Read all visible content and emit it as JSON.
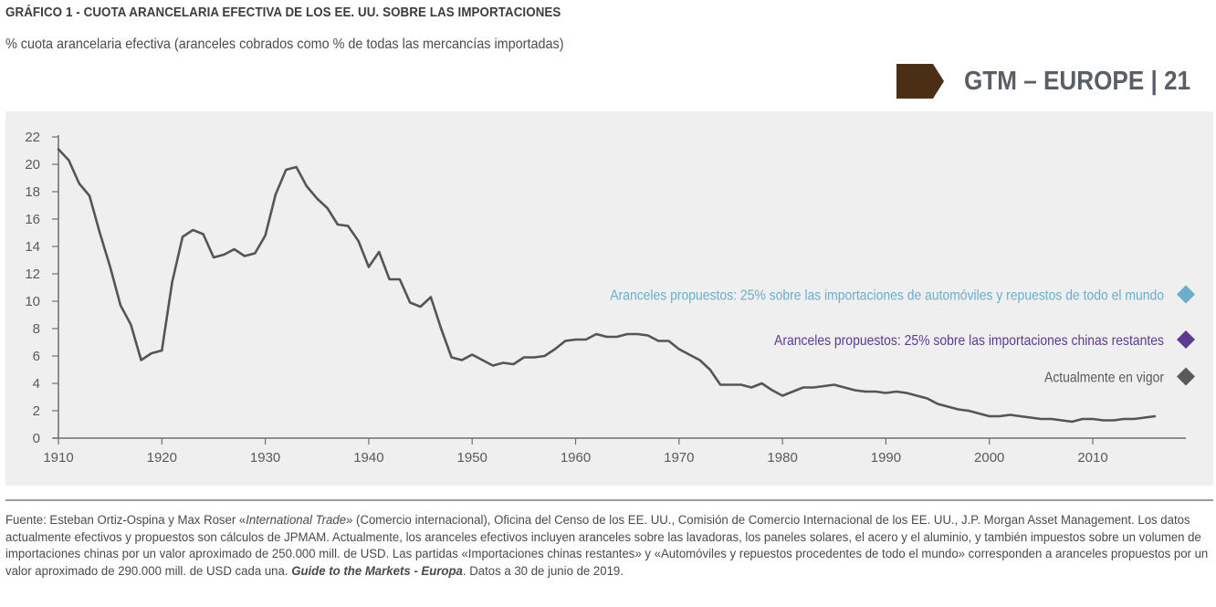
{
  "header": {
    "title": "GRÁFICO 1 - CUOTA ARANCELARIA EFECTIVA DE LOS EE. UU. SOBRE LAS IMPORTACIONES",
    "subtitle": "% cuota arancelaria efectiva (aranceles cobrados como % de todas las mercancías importadas)",
    "brand": "GTM – EUROPE | 21",
    "brand_color": "#4a2f14"
  },
  "chart_data": {
    "type": "line",
    "title": "Cuota arancelaria efectiva de los EE. UU. sobre las importaciones",
    "ylabel": "% cuota arancelaria efectiva",
    "xlabel": "",
    "xlim": [
      1910,
      2019
    ],
    "ylim": [
      0,
      22
    ],
    "x_ticks": [
      1910,
      1920,
      1930,
      1940,
      1950,
      1960,
      1970,
      1980,
      1990,
      2000,
      2010
    ],
    "y_ticks": [
      0,
      2,
      4,
      6,
      8,
      10,
      12,
      14,
      16,
      18,
      20,
      22
    ],
    "grid": false,
    "line_color": "#555555",
    "series": [
      {
        "name": "Cuota arancelaria efectiva",
        "x": [
          1910,
          1911,
          1912,
          1913,
          1914,
          1915,
          1916,
          1917,
          1918,
          1919,
          1920,
          1921,
          1922,
          1923,
          1924,
          1925,
          1926,
          1927,
          1928,
          1929,
          1930,
          1931,
          1932,
          1933,
          1934,
          1935,
          1936,
          1937,
          1938,
          1939,
          1940,
          1941,
          1942,
          1943,
          1944,
          1945,
          1946,
          1947,
          1948,
          1949,
          1950,
          1951,
          1952,
          1953,
          1954,
          1955,
          1956,
          1957,
          1958,
          1959,
          1960,
          1961,
          1962,
          1963,
          1964,
          1965,
          1966,
          1967,
          1968,
          1969,
          1970,
          1971,
          1972,
          1973,
          1974,
          1975,
          1976,
          1977,
          1978,
          1979,
          1980,
          1981,
          1982,
          1983,
          1984,
          1985,
          1986,
          1987,
          1988,
          1989,
          1990,
          1991,
          1992,
          1993,
          1994,
          1995,
          1996,
          1997,
          1998,
          1999,
          2000,
          2001,
          2002,
          2003,
          2004,
          2005,
          2006,
          2007,
          2008,
          2009,
          2010,
          2011,
          2012,
          2013,
          2014,
          2015,
          2016
        ],
        "values": [
          21.1,
          20.3,
          18.6,
          17.7,
          15.0,
          12.5,
          9.7,
          8.3,
          5.7,
          6.2,
          6.4,
          11.4,
          14.7,
          15.2,
          14.9,
          13.2,
          13.4,
          13.8,
          13.3,
          13.5,
          14.8,
          17.8,
          19.6,
          19.8,
          18.4,
          17.5,
          16.8,
          15.6,
          15.5,
          14.4,
          12.5,
          13.6,
          11.6,
          11.6,
          9.9,
          9.6,
          10.3,
          8.0,
          5.9,
          5.7,
          6.1,
          5.7,
          5.3,
          5.5,
          5.4,
          5.9,
          5.9,
          6.0,
          6.5,
          7.1,
          7.2,
          7.2,
          7.6,
          7.4,
          7.4,
          7.6,
          7.6,
          7.5,
          7.1,
          7.1,
          6.5,
          6.1,
          5.7,
          5.0,
          3.9,
          3.9,
          3.9,
          3.7,
          4.0,
          3.5,
          3.1,
          3.4,
          3.7,
          3.7,
          3.8,
          3.9,
          3.7,
          3.5,
          3.4,
          3.4,
          3.3,
          3.4,
          3.3,
          3.1,
          2.9,
          2.5,
          2.3,
          2.1,
          2.0,
          1.8,
          1.6,
          1.6,
          1.7,
          1.6,
          1.5,
          1.4,
          1.4,
          1.3,
          1.2,
          1.4,
          1.4,
          1.3,
          1.3,
          1.4,
          1.4,
          1.5,
          1.6
        ]
      }
    ],
    "markers": [
      {
        "name": "Aranceles propuestos: 25% sobre las importaciones de automóviles y repuestos de todo el mundo",
        "x": 2019,
        "value": 10.5,
        "color": "#6aaecb"
      },
      {
        "name": "Aranceles propuestos: 25% sobre las importaciones chinas restantes",
        "x": 2019,
        "value": 7.2,
        "color": "#5b3a93"
      },
      {
        "name": "Actualmente en vigor",
        "x": 2019,
        "value": 4.5,
        "color": "#5a5a5a"
      }
    ],
    "legend_placement": "right"
  },
  "footer": {
    "text_1": "Fuente: Esteban Ortiz-Ospina y Max Roser «",
    "italic_1": "International Trade",
    "text_2": "» (Comercio internacional), Oficina del Censo de los EE. UU., Comisión de Comercio Internacional de los EE. UU., J.P. Morgan Asset Management. Los datos actualmente efectivos y propuestos son cálculos de JPMAM. Actualmente, los aranceles efectivos incluyen aranceles sobre las lavadoras, los paneles solares, el acero y el aluminio, y también impuestos sobre un volumen de importaciones chinas por un valor aproximado de 250.000 mill. de USD. Las partidas «Importaciones chinas restantes» y «Automóviles y repuestos procedentes de todo el mundo» corresponden a aranceles propuestos por un valor aproximado de 290.000 mill. de USD cada una. ",
    "bold_italic": "Guide to the Markets - Europa",
    "text_3": ". Datos a 30 de junio de 2019."
  }
}
